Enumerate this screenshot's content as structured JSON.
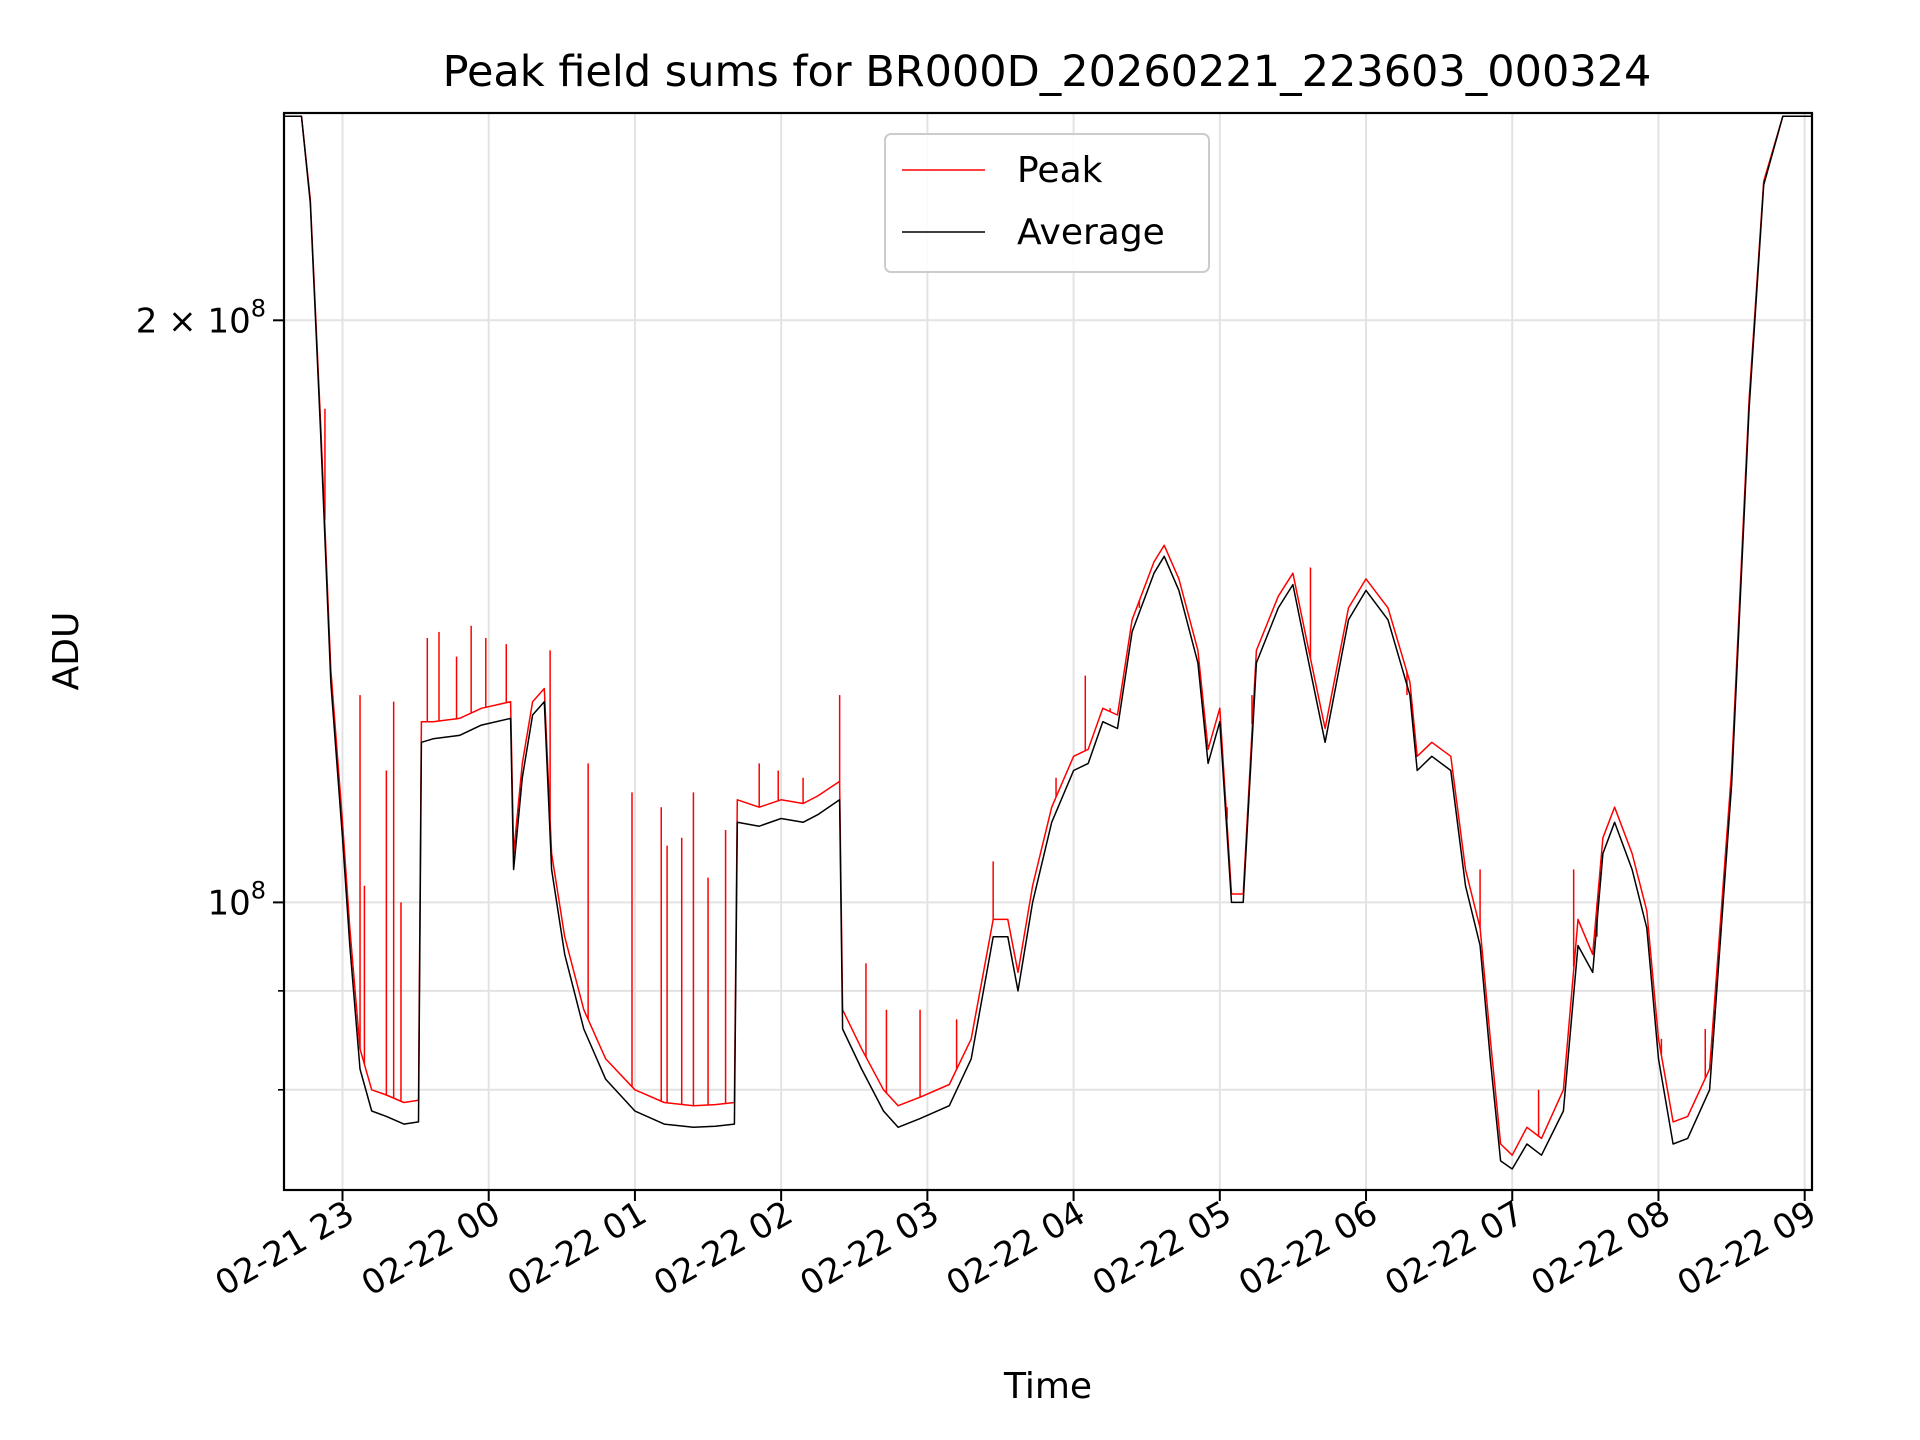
{
  "chart_data": {
    "type": "line",
    "title": "Peak field sums for BR000D_20260221_223603_000324",
    "xlabel": "Time",
    "ylabel": "ADU",
    "yscale": "log",
    "grid": true,
    "legend_position": "upper-center",
    "xlim": [
      22.6,
      33.05
    ],
    "ylim": [
      71000000,
      256000000
    ],
    "x_ticks": [
      {
        "value": 23,
        "label": "02-21 23"
      },
      {
        "value": 24,
        "label": "02-22 00"
      },
      {
        "value": 25,
        "label": "02-22 01"
      },
      {
        "value": 26,
        "label": "02-22 02"
      },
      {
        "value": 27,
        "label": "02-22 03"
      },
      {
        "value": 28,
        "label": "02-22 04"
      },
      {
        "value": 29,
        "label": "02-22 05"
      },
      {
        "value": 30,
        "label": "02-22 06"
      },
      {
        "value": 31,
        "label": "02-22 07"
      },
      {
        "value": 32,
        "label": "02-22 08"
      },
      {
        "value": 33,
        "label": "02-22 09"
      }
    ],
    "y_major_ticks": [
      {
        "value": 100000000,
        "base": "10",
        "exp": "8"
      },
      {
        "value": 200000000,
        "mant": "2 × 10",
        "exp": "8"
      }
    ],
    "y_minor_ticks": [
      80000000,
      90000000
    ],
    "series": [
      {
        "name": "Average",
        "color": "#000000",
        "points": [
          [
            22.6,
            255000000.0
          ],
          [
            22.72,
            255000000.0
          ],
          [
            22.78,
            230000000.0
          ],
          [
            22.85,
            175000000.0
          ],
          [
            22.92,
            130000000.0
          ],
          [
            23.0,
            108000000.0
          ],
          [
            23.05,
            95000000.0
          ],
          [
            23.12,
            82000000.0
          ],
          [
            23.2,
            78000000.0
          ],
          [
            23.3,
            77500000.0
          ],
          [
            23.42,
            76800000.0
          ],
          [
            23.52,
            77000000.0
          ],
          [
            23.54,
            121000000.0
          ],
          [
            23.62,
            121500000.0
          ],
          [
            23.8,
            122000000.0
          ],
          [
            23.95,
            123500000.0
          ],
          [
            24.15,
            124500000.0
          ],
          [
            24.17,
            104000000.0
          ],
          [
            24.23,
            116000000.0
          ],
          [
            24.3,
            125000000.0
          ],
          [
            24.38,
            127000000.0
          ],
          [
            24.43,
            104000000.0
          ],
          [
            24.52,
            94000000.0
          ],
          [
            24.65,
            86000000.0
          ],
          [
            24.8,
            81000000.0
          ],
          [
            25.0,
            78000000.0
          ],
          [
            25.2,
            76800000.0
          ],
          [
            25.4,
            76500000.0
          ],
          [
            25.55,
            76600000.0
          ],
          [
            25.68,
            76800000.0
          ],
          [
            25.7,
            110000000.0
          ],
          [
            25.85,
            109500000.0
          ],
          [
            26.0,
            110500000.0
          ],
          [
            26.15,
            110000000.0
          ],
          [
            26.25,
            111000000.0
          ],
          [
            26.4,
            113000000.0
          ],
          [
            26.42,
            86000000.0
          ],
          [
            26.55,
            82000000.0
          ],
          [
            26.7,
            78000000.0
          ],
          [
            26.8,
            76500000.0
          ],
          [
            26.95,
            77300000.0
          ],
          [
            27.15,
            78500000.0
          ],
          [
            27.3,
            83000000.0
          ],
          [
            27.45,
            96000000.0
          ],
          [
            27.55,
            96000000.0
          ],
          [
            27.62,
            90000000.0
          ],
          [
            27.72,
            100000000.0
          ],
          [
            27.85,
            110000000.0
          ],
          [
            28.0,
            117000000.0
          ],
          [
            28.1,
            118000000.0
          ],
          [
            28.2,
            124000000.0
          ],
          [
            28.3,
            123000000.0
          ],
          [
            28.4,
            138000000.0
          ],
          [
            28.55,
            148000000.0
          ],
          [
            28.62,
            151000000.0
          ],
          [
            28.72,
            145000000.0
          ],
          [
            28.85,
            133000000.0
          ],
          [
            28.92,
            118000000.0
          ],
          [
            29.0,
            124000000.0
          ],
          [
            29.08,
            100000000.0
          ],
          [
            29.16,
            100000000.0
          ],
          [
            29.25,
            133000000.0
          ],
          [
            29.4,
            142000000.0
          ],
          [
            29.5,
            146000000.0
          ],
          [
            29.6,
            134000000.0
          ],
          [
            29.72,
            121000000.0
          ],
          [
            29.88,
            140000000.0
          ],
          [
            30.0,
            145000000.0
          ],
          [
            30.15,
            140000000.0
          ],
          [
            30.3,
            128000000.0
          ],
          [
            30.35,
            117000000.0
          ],
          [
            30.45,
            119000000.0
          ],
          [
            30.58,
            117000000.0
          ],
          [
            30.68,
            102000000.0
          ],
          [
            30.78,
            95000000.0
          ],
          [
            30.85,
            83000000.0
          ],
          [
            30.92,
            73500000.0
          ],
          [
            31.0,
            72800000.0
          ],
          [
            31.1,
            75000000.0
          ],
          [
            31.2,
            74000000.0
          ],
          [
            31.35,
            78000000.0
          ],
          [
            31.45,
            95000000.0
          ],
          [
            31.55,
            92000000.0
          ],
          [
            31.62,
            106000000.0
          ],
          [
            31.7,
            110000000.0
          ],
          [
            31.82,
            104000000.0
          ],
          [
            31.92,
            97000000.0
          ],
          [
            32.0,
            83000000.0
          ],
          [
            32.1,
            75000000.0
          ],
          [
            32.2,
            75500000.0
          ],
          [
            32.35,
            80000000.0
          ],
          [
            32.5,
            115000000.0
          ],
          [
            32.62,
            180000000.0
          ],
          [
            32.72,
            235000000.0
          ],
          [
            32.85,
            255000000.0
          ],
          [
            33.05,
            255000000.0
          ]
        ]
      },
      {
        "name": "Peak",
        "color": "#ff0000",
        "points": [
          [
            22.6,
            255000000.0
          ],
          [
            22.72,
            255000000.0
          ],
          [
            22.78,
            231000000.0
          ],
          [
            22.85,
            177000000.0
          ],
          [
            22.92,
            132000000.0
          ],
          [
            23.0,
            110000000.0
          ],
          [
            23.05,
            97000000.0
          ],
          [
            23.12,
            84000000.0
          ],
          [
            23.2,
            80000000.0
          ],
          [
            23.3,
            79500000.0
          ],
          [
            23.42,
            78800000.0
          ],
          [
            23.52,
            79000000.0
          ],
          [
            23.54,
            124000000.0
          ],
          [
            23.62,
            124000000.0
          ],
          [
            23.8,
            124500000.0
          ],
          [
            23.95,
            126000000.0
          ],
          [
            24.15,
            127000000.0
          ],
          [
            24.17,
            106000000.0
          ],
          [
            24.23,
            118000000.0
          ],
          [
            24.3,
            127000000.0
          ],
          [
            24.38,
            129000000.0
          ],
          [
            24.43,
            106000000.0
          ],
          [
            24.52,
            96000000.0
          ],
          [
            24.65,
            88000000.0
          ],
          [
            24.8,
            83000000.0
          ],
          [
            25.0,
            80000000.0
          ],
          [
            25.2,
            78800000.0
          ],
          [
            25.4,
            78500000.0
          ],
          [
            25.55,
            78600000.0
          ],
          [
            25.68,
            78800000.0
          ],
          [
            25.7,
            113000000.0
          ],
          [
            25.85,
            112000000.0
          ],
          [
            26.0,
            113000000.0
          ],
          [
            26.15,
            112500000.0
          ],
          [
            26.25,
            113500000.0
          ],
          [
            26.4,
            115500000.0
          ],
          [
            26.42,
            88000000.0
          ],
          [
            26.55,
            84000000.0
          ],
          [
            26.7,
            80000000.0
          ],
          [
            26.8,
            78500000.0
          ],
          [
            26.95,
            79300000.0
          ],
          [
            27.15,
            80500000.0
          ],
          [
            27.3,
            85000000.0
          ],
          [
            27.45,
            98000000.0
          ],
          [
            27.55,
            98000000.0
          ],
          [
            27.62,
            92000000.0
          ],
          [
            27.72,
            102000000.0
          ],
          [
            27.85,
            112000000.0
          ],
          [
            28.0,
            119000000.0
          ],
          [
            28.1,
            120000000.0
          ],
          [
            28.2,
            126000000.0
          ],
          [
            28.3,
            125000000.0
          ],
          [
            28.4,
            140000000.0
          ],
          [
            28.55,
            150000000.0
          ],
          [
            28.62,
            153000000.0
          ],
          [
            28.72,
            147000000.0
          ],
          [
            28.85,
            135000000.0
          ],
          [
            28.92,
            120000000.0
          ],
          [
            29.0,
            126000000.0
          ],
          [
            29.08,
            101000000.0
          ],
          [
            29.16,
            101000000.0
          ],
          [
            29.25,
            135000000.0
          ],
          [
            29.4,
            144000000.0
          ],
          [
            29.5,
            148000000.0
          ],
          [
            29.6,
            136000000.0
          ],
          [
            29.72,
            123000000.0
          ],
          [
            29.88,
            142000000.0
          ],
          [
            30.0,
            147000000.0
          ],
          [
            30.15,
            142000000.0
          ],
          [
            30.3,
            130000000.0
          ],
          [
            30.35,
            119000000.0
          ],
          [
            30.45,
            121000000.0
          ],
          [
            30.58,
            119000000.0
          ],
          [
            30.68,
            104000000.0
          ],
          [
            30.78,
            97000000.0
          ],
          [
            30.85,
            85000000.0
          ],
          [
            30.92,
            75000000.0
          ],
          [
            31.0,
            74000000.0
          ],
          [
            31.1,
            76500000.0
          ],
          [
            31.2,
            75500000.0
          ],
          [
            31.35,
            80000000.0
          ],
          [
            31.45,
            98000000.0
          ],
          [
            31.55,
            94000000.0
          ],
          [
            31.62,
            108000000.0
          ],
          [
            31.7,
            112000000.0
          ],
          [
            31.82,
            106000000.0
          ],
          [
            31.92,
            99000000.0
          ],
          [
            32.0,
            85000000.0
          ],
          [
            32.1,
            77000000.0
          ],
          [
            32.2,
            77500000.0
          ],
          [
            32.35,
            82000000.0
          ],
          [
            32.5,
            117000000.0
          ],
          [
            32.62,
            182000000.0
          ],
          [
            32.72,
            236000000.0
          ],
          [
            32.85,
            255000000.0
          ],
          [
            33.05,
            255000000.0
          ]
        ]
      }
    ],
    "peak_spikes": [
      [
        22.88,
        180000000.0
      ],
      [
        23.12,
        128000000.0
      ],
      [
        23.35,
        127000000.0
      ],
      [
        23.3,
        117000000.0
      ],
      [
        23.15,
        102000000.0
      ],
      [
        23.4,
        100000000.0
      ],
      [
        23.58,
        137000000.0
      ],
      [
        23.66,
        138000000.0
      ],
      [
        23.78,
        134000000.0
      ],
      [
        23.88,
        139000000.0
      ],
      [
        23.98,
        137000000.0
      ],
      [
        24.12,
        136000000.0
      ],
      [
        24.42,
        135000000.0
      ],
      [
        24.68,
        118000000.0
      ],
      [
        24.98,
        114000000.0
      ],
      [
        25.18,
        112000000.0
      ],
      [
        25.22,
        107000000.0
      ],
      [
        25.32,
        108000000.0
      ],
      [
        25.4,
        114000000.0
      ],
      [
        25.5,
        103000000.0
      ],
      [
        25.62,
        109000000.0
      ],
      [
        25.85,
        118000000.0
      ],
      [
        25.98,
        117000000.0
      ],
      [
        26.15,
        116000000.0
      ],
      [
        26.4,
        128000000.0
      ],
      [
        26.58,
        93000000.0
      ],
      [
        26.72,
        88000000.0
      ],
      [
        26.95,
        88000000.0
      ],
      [
        27.2,
        87000000.0
      ],
      [
        27.45,
        105000000.0
      ],
      [
        27.88,
        116000000.0
      ],
      [
        28.08,
        131000000.0
      ],
      [
        28.25,
        126000000.0
      ],
      [
        28.45,
        142000000.0
      ],
      [
        29.05,
        112000000.0
      ],
      [
        29.22,
        128000000.0
      ],
      [
        29.62,
        149000000.0
      ],
      [
        30.28,
        128000000.0
      ],
      [
        30.78,
        104000000.0
      ],
      [
        31.18,
        80000000.0
      ],
      [
        31.42,
        104000000.0
      ],
      [
        31.58,
        96000000.0
      ],
      [
        32.02,
        85000000.0
      ],
      [
        32.32,
        86000000.0
      ]
    ],
    "legend": [
      {
        "label": "Peak",
        "color": "#ff0000"
      },
      {
        "label": "Average",
        "color": "#000000"
      }
    ]
  }
}
